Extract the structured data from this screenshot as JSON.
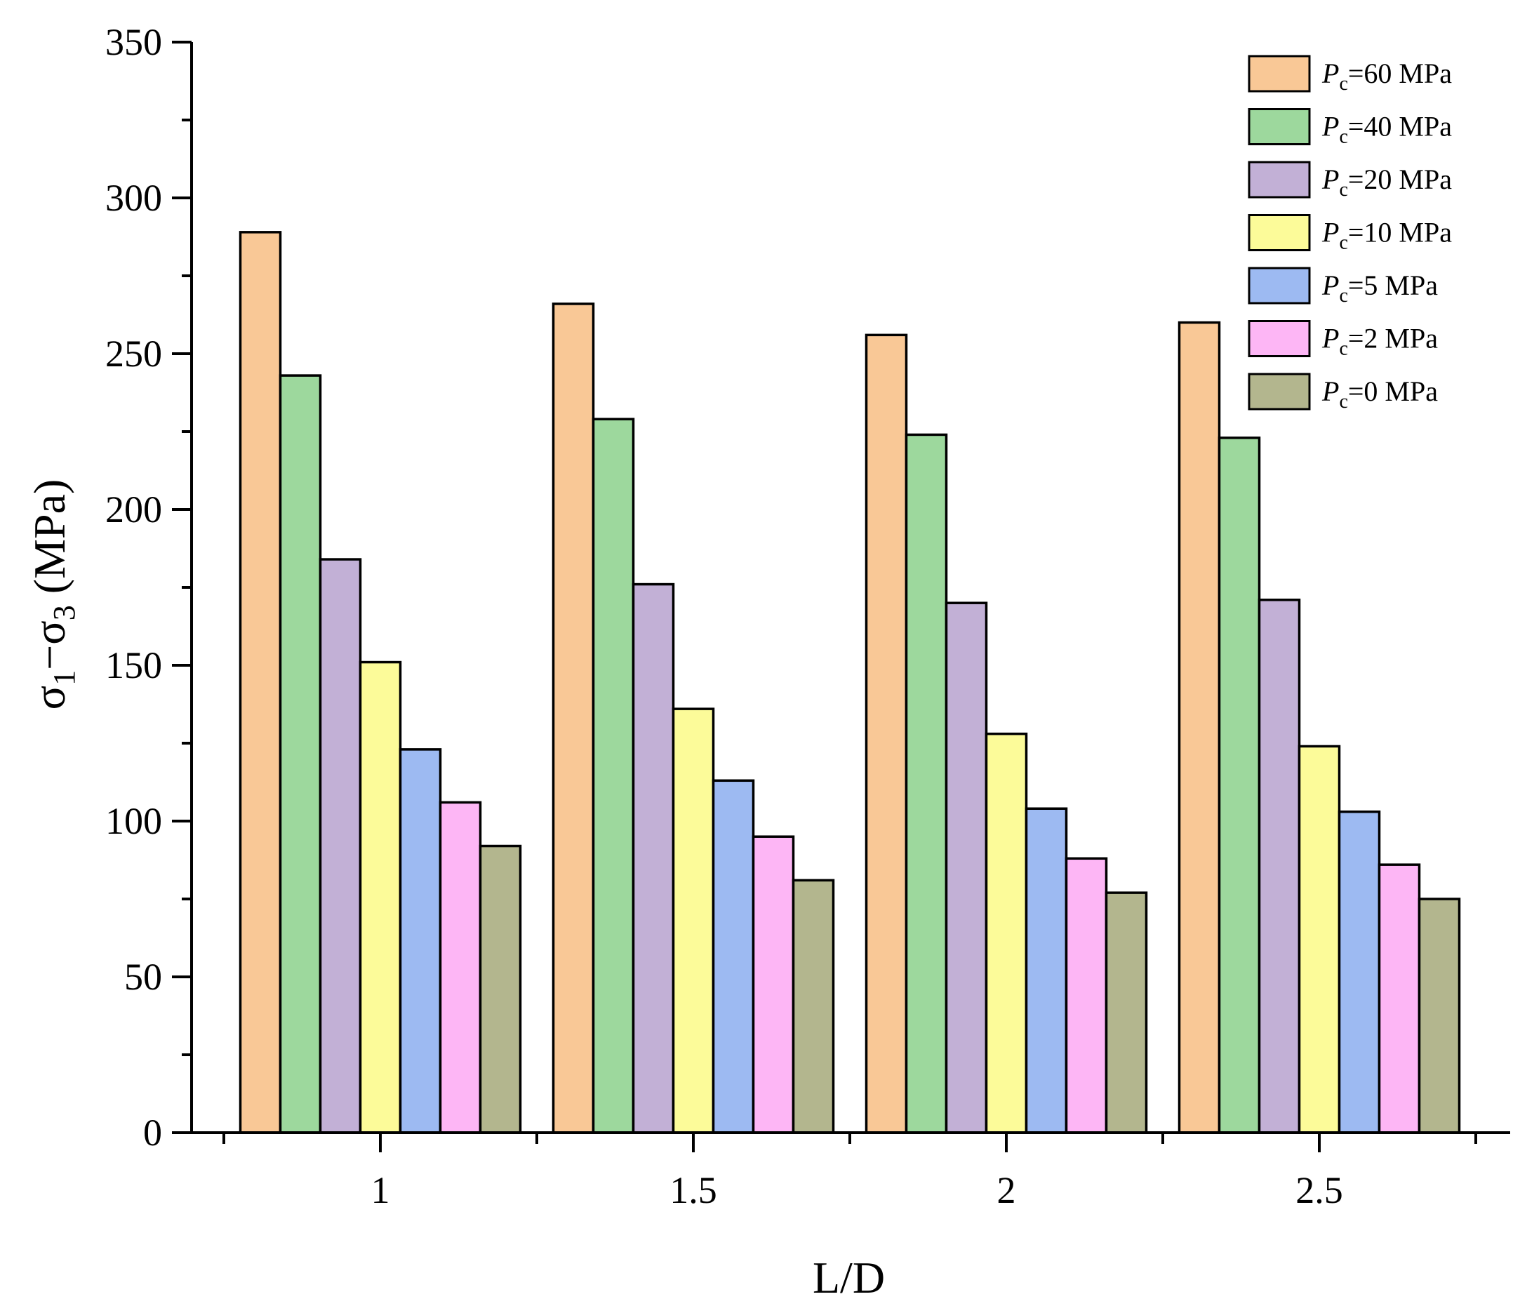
{
  "chart_data": {
    "type": "bar",
    "title": "",
    "xlabel": "L/D",
    "ylabel": {
      "main": "σ",
      "sub1": "1",
      "minus": "−σ",
      "sub3": "3",
      "unit": " (MPa)"
    },
    "categories": [
      "1",
      "1.5",
      "2",
      "2.5"
    ],
    "ylim": [
      0,
      350
    ],
    "yticks": [
      0,
      50,
      100,
      150,
      200,
      250,
      300,
      350
    ],
    "ytick_labels": [
      "0",
      "50",
      "100",
      "150",
      "200",
      "250",
      "300",
      "350"
    ],
    "grid": false,
    "legend_position": "top-right",
    "series": [
      {
        "name": "Pc=60 MPa",
        "prefix": "P",
        "sub": "c",
        "label": "=60 MPa",
        "color": "#F9C896",
        "values": [
          289,
          266,
          256,
          260
        ]
      },
      {
        "name": "Pc=40 MPa",
        "prefix": "P",
        "sub": "c",
        "label": "=40 MPa",
        "color": "#9DD89D",
        "values": [
          243,
          229,
          224,
          223
        ]
      },
      {
        "name": "Pc=20 MPa",
        "prefix": "P",
        "sub": "c",
        "label": "=20 MPa",
        "color": "#C2B0D6",
        "values": [
          184,
          176,
          170,
          171
        ]
      },
      {
        "name": "Pc=10 MPa",
        "prefix": "P",
        "sub": "c",
        "label": "=10 MPa",
        "color": "#FCFB99",
        "values": [
          151,
          136,
          128,
          124
        ]
      },
      {
        "name": "Pc=5 MPa",
        "prefix": "P",
        "sub": "c",
        "label": "=5 MPa",
        "color": "#9DBAF2",
        "values": [
          123,
          113,
          104,
          103
        ]
      },
      {
        "name": "Pc=2 MPa",
        "prefix": "P",
        "sub": "c",
        "label": "=2 MPa",
        "color": "#FDB6F5",
        "values": [
          106,
          95,
          88,
          86
        ]
      },
      {
        "name": "Pc=0 MPa",
        "prefix": "P",
        "sub": "c",
        "label": "=0 MPa",
        "color": "#B3B68E",
        "values": [
          92,
          81,
          77,
          75
        ]
      }
    ]
  }
}
